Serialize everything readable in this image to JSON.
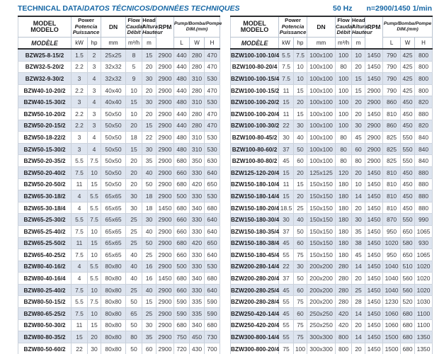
{
  "header": {
    "title_part1": "TECHNICAL DATA/",
    "title_part2": "DATOS TÉCNICOS/DONNÉES TECHNIQUES",
    "frequency": "50 Hz",
    "speed": "n=2900/1450 1/min",
    "accent_color": "#1667a5",
    "stripe_color": "#dde4ef"
  },
  "table_header": {
    "model_l1": "MODEL",
    "model_l2": "MODELO",
    "model_l3": "MODÈLE",
    "power_l1": "Power",
    "power_l2": "Potencia",
    "power_l3": "Puissance",
    "dn": "DN",
    "flow_l1": "Flow",
    "flow_l2": "Caudal",
    "flow_l3": "Débit",
    "head_l1": "Head",
    "head_l2": "Altura",
    "head_l3": "Hauteur",
    "rpm": "RPM",
    "dim_l1": "Pump/Bomba/Pompe",
    "dim_l2": "DIM.(mm)",
    "unit_kw": "kW",
    "unit_hp": "hp",
    "unit_mm": "mm",
    "unit_flow": "m³/h",
    "unit_head": "m",
    "unit_l": "L",
    "unit_w": "W",
    "unit_h": "H"
  },
  "tables": [
    {
      "rows": [
        [
          "BZW25-8-15/2",
          "1.5",
          "2",
          "25x25",
          "8",
          "15",
          "2900",
          "440",
          "280",
          "470"
        ],
        [
          "BZW32-5-20/2",
          "2.2",
          "3",
          "32x32",
          "5",
          "20",
          "2900",
          "440",
          "280",
          "470"
        ],
        [
          "BZW32-9-30/2",
          "3",
          "4",
          "32x32",
          "9",
          "30",
          "2900",
          "480",
          "310",
          "530"
        ],
        [
          "BZW40-10-20/2",
          "2.2",
          "3",
          "40x40",
          "10",
          "20",
          "2900",
          "440",
          "280",
          "470"
        ],
        [
          "BZW40-15-30/2",
          "3",
          "4",
          "40x40",
          "15",
          "30",
          "2900",
          "480",
          "310",
          "530"
        ],
        [
          "BZW50-10-20/2",
          "2.2",
          "3",
          "50x50",
          "10",
          "20",
          "2900",
          "440",
          "280",
          "470"
        ],
        [
          "BZW50-20-15/2",
          "2.2",
          "3",
          "50x50",
          "20",
          "15",
          "2900",
          "440",
          "280",
          "470"
        ],
        [
          "BZW50-18-22/2",
          "3",
          "4",
          "50x50",
          "18",
          "22",
          "2900",
          "480",
          "310",
          "530"
        ],
        [
          "BZW50-15-30/2",
          "3",
          "4",
          "50x50",
          "15",
          "30",
          "2900",
          "480",
          "310",
          "530"
        ],
        [
          "BZW50-20-35/2",
          "5.5",
          "7.5",
          "50x50",
          "20",
          "35",
          "2900",
          "680",
          "350",
          "630"
        ],
        [
          "BZW50-20-40/2",
          "7.5",
          "10",
          "50x50",
          "20",
          "40",
          "2900",
          "660",
          "330",
          "640"
        ],
        [
          "BZW50-20-50/2",
          "11",
          "15",
          "50x50",
          "20",
          "50",
          "2900",
          "680",
          "420",
          "650"
        ],
        [
          "BZW65-30-18/2",
          "4",
          "5.5",
          "65x65",
          "30",
          "18",
          "2900",
          "500",
          "330",
          "530"
        ],
        [
          "BZW65-30-18/4",
          "4",
          "5.5",
          "65x65",
          "30",
          "18",
          "1450",
          "680",
          "340",
          "680"
        ],
        [
          "BZW65-25-30/2",
          "5.5",
          "7.5",
          "65x65",
          "25",
          "30",
          "2900",
          "660",
          "330",
          "640"
        ],
        [
          "BZW65-25-40/2",
          "7.5",
          "10",
          "65x65",
          "25",
          "40",
          "2900",
          "660",
          "330",
          "640"
        ],
        [
          "BZW65-25-50/2",
          "11",
          "15",
          "65x65",
          "25",
          "50",
          "2900",
          "680",
          "420",
          "650"
        ],
        [
          "BZW65-40-25/2",
          "7.5",
          "10",
          "65x65",
          "40",
          "25",
          "2900",
          "660",
          "330",
          "640"
        ],
        [
          "BZW80-40-16/2",
          "4",
          "5.5",
          "80x80",
          "40",
          "16",
          "2900",
          "500",
          "330",
          "530"
        ],
        [
          "BZW80-40-16/4",
          "4",
          "5.5",
          "80x80",
          "40",
          "16",
          "1450",
          "680",
          "340",
          "680"
        ],
        [
          "BZW80-25-40/2",
          "7.5",
          "10",
          "80x80",
          "25",
          "40",
          "2900",
          "660",
          "330",
          "640"
        ],
        [
          "BZW80-50-15/2",
          "5.5",
          "7.5",
          "80x80",
          "50",
          "15",
          "2900",
          "590",
          "335",
          "590"
        ],
        [
          "BZW80-65-25/2",
          "7.5",
          "10",
          "80x80",
          "65",
          "25",
          "2900",
          "590",
          "335",
          "590"
        ],
        [
          "BZW80-50-30/2",
          "11",
          "15",
          "80x80",
          "50",
          "30",
          "2900",
          "680",
          "340",
          "680"
        ],
        [
          "BZW80-80-35/2",
          "15",
          "20",
          "80x80",
          "80",
          "35",
          "2900",
          "750",
          "450",
          "730"
        ],
        [
          "BZW80-50-60/2",
          "22",
          "30",
          "80x80",
          "50",
          "60",
          "2900",
          "720",
          "430",
          "700"
        ]
      ]
    },
    {
      "rows": [
        [
          "BZW100-100-10/4",
          "5.5",
          "7.5",
          "100x100",
          "100",
          "10",
          "1450",
          "790",
          "425",
          "800"
        ],
        [
          "BZW100-80-20/4",
          "7.5",
          "10",
          "100x100",
          "80",
          "20",
          "1450",
          "790",
          "425",
          "800"
        ],
        [
          "BZW100-100-15/4",
          "7.5",
          "10",
          "100x100",
          "100",
          "15",
          "1450",
          "790",
          "425",
          "800"
        ],
        [
          "BZW100-100-15/2",
          "11",
          "15",
          "100x100",
          "100",
          "15",
          "2900",
          "790",
          "425",
          "800"
        ],
        [
          "BZW100-100-20/2",
          "15",
          "20",
          "100x100",
          "100",
          "20",
          "2900",
          "860",
          "450",
          "820"
        ],
        [
          "BZW100-100-20/4",
          "11",
          "15",
          "100x100",
          "100",
          "20",
          "1450",
          "810",
          "450",
          "880"
        ],
        [
          "BZW100-100-30/2",
          "22",
          "30",
          "100x100",
          "100",
          "30",
          "2900",
          "860",
          "450",
          "820"
        ],
        [
          "BZW100-80-45/2",
          "30",
          "40",
          "100x100",
          "80",
          "45",
          "2900",
          "825",
          "550",
          "840"
        ],
        [
          "BZW100-80-60/2",
          "37",
          "50",
          "100x100",
          "80",
          "60",
          "2900",
          "825",
          "550",
          "840"
        ],
        [
          "BZW100-80-80/2",
          "45",
          "60",
          "100x100",
          "80",
          "80",
          "2900",
          "825",
          "550",
          "840"
        ],
        [
          "BZW125-120-20/4",
          "15",
          "20",
          "125x125",
          "120",
          "20",
          "1450",
          "810",
          "450",
          "880"
        ],
        [
          "BZW150-180-10/4",
          "11",
          "15",
          "150x150",
          "180",
          "10",
          "1450",
          "810",
          "450",
          "880"
        ],
        [
          "BZW150-180-14/4",
          "15",
          "20",
          "150x150",
          "180",
          "14",
          "1450",
          "810",
          "450",
          "880"
        ],
        [
          "BZW150-180-20/4",
          "18.5",
          "25",
          "150x150",
          "180",
          "20",
          "1450",
          "810",
          "450",
          "880"
        ],
        [
          "BZW150-180-30/4",
          "30",
          "40",
          "150x150",
          "180",
          "30",
          "1450",
          "870",
          "550",
          "990"
        ],
        [
          "BZW150-180-35/4",
          "37",
          "50",
          "150x150",
          "180",
          "35",
          "1450",
          "950",
          "650",
          "1065"
        ],
        [
          "BZW150-180-38/4",
          "45",
          "60",
          "150x150",
          "180",
          "38",
          "1450",
          "1020",
          "580",
          "930"
        ],
        [
          "BZW150-180-45/4",
          "55",
          "75",
          "150x150",
          "180",
          "45",
          "1450",
          "950",
          "650",
          "1065"
        ],
        [
          "BZW200-280-14/4",
          "22",
          "30",
          "200x200",
          "280",
          "14",
          "1450",
          "1040",
          "510",
          "1020"
        ],
        [
          "BZW200-280-20/4",
          "37",
          "50",
          "200x200",
          "280",
          "20",
          "1450",
          "1040",
          "560",
          "1020"
        ],
        [
          "BZW200-280-25/4",
          "45",
          "60",
          "200x200",
          "280",
          "25",
          "1450",
          "1040",
          "560",
          "1020"
        ],
        [
          "BZW200-280-28/4",
          "55",
          "75",
          "200x200",
          "280",
          "28",
          "1450",
          "1230",
          "520",
          "1030"
        ],
        [
          "BZW250-420-14/4",
          "45",
          "60",
          "250x250",
          "420",
          "14",
          "1450",
          "1060",
          "680",
          "1100"
        ],
        [
          "BZW250-420-20/4",
          "55",
          "75",
          "250x250",
          "420",
          "20",
          "1450",
          "1060",
          "680",
          "1100"
        ],
        [
          "BZW300-800-14/4",
          "55",
          "75",
          "300x300",
          "800",
          "14",
          "1450",
          "1500",
          "680",
          "1350"
        ],
        [
          "BZW300-800-20/4",
          "75",
          "100",
          "300x300",
          "800",
          "20",
          "1450",
          "1500",
          "680",
          "1350"
        ]
      ]
    }
  ]
}
